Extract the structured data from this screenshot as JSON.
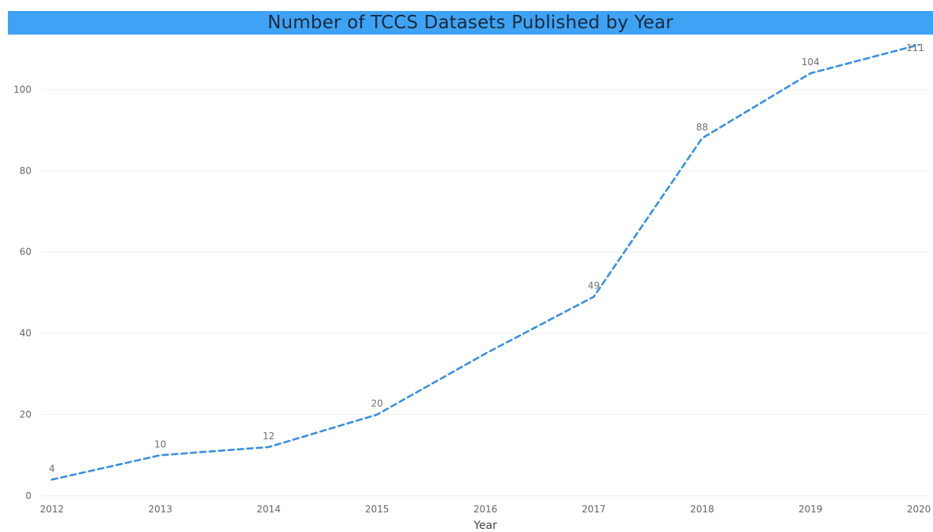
{
  "chart_data": {
    "type": "line",
    "title": "Number of TCCS Datasets Published by Year",
    "xlabel": "Year",
    "ylabel": "",
    "x": [
      2012,
      2013,
      2014,
      2015,
      2016,
      2017,
      2018,
      2019,
      2020
    ],
    "series": [
      {
        "values": [
          4,
          10,
          12,
          20,
          35,
          49,
          88,
          104,
          111
        ],
        "labels": [
          "4",
          "10",
          "12",
          "20",
          "",
          "49",
          "88",
          "104",
          "111"
        ]
      }
    ],
    "x_ticks": [
      "2012",
      "2013",
      "2014",
      "2015",
      "2016",
      "2017",
      "2018",
      "2019",
      "2020"
    ],
    "y_ticks": [
      "0",
      "20",
      "40",
      "60",
      "80",
      "100"
    ],
    "ylim": [
      0,
      111
    ],
    "grid": true,
    "line_style": "dashed",
    "colors": {
      "title_bar": "#3fa3f5",
      "line": "#3b8fe0",
      "grid": "#eeeeee"
    }
  }
}
